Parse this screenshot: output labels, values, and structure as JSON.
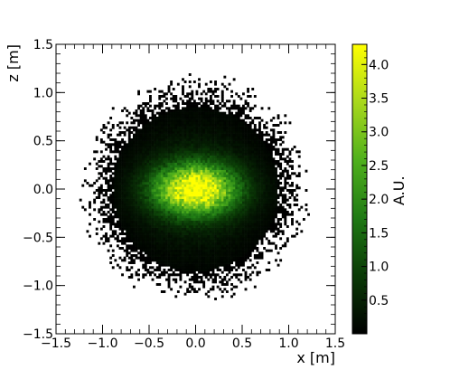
{
  "chart_data": {
    "type": "heatmap",
    "title": "",
    "xlabel": "x [m]",
    "ylabel": "z [m]",
    "colorbar_label": "A.U.",
    "xlim": [
      -1.5,
      1.5
    ],
    "ylim": [
      -1.5,
      1.5
    ],
    "x_ticks": [
      "−1.5",
      "−1.0",
      "−0.5",
      "0.0",
      "0.5",
      "1.0",
      "1.5"
    ],
    "y_ticks": [
      "−1.5",
      "−1.0",
      "−0.5",
      "0.0",
      "0.5",
      "1.0",
      "1.5"
    ],
    "colorbar_range": [
      0,
      4.3
    ],
    "colorbar_ticks": [
      "0.5",
      "1.0",
      "1.5",
      "2.0",
      "2.5",
      "3.0",
      "3.5",
      "4.0"
    ],
    "colormap": [
      "#000000",
      "#0a3a06",
      "#1f7a14",
      "#4fb01c",
      "#a8d81c",
      "#ffff00"
    ],
    "distribution": {
      "center": [
        0.0,
        0.0
      ],
      "dense_radius": 0.85,
      "sparse_radius": 1.25,
      "peak_value": 4.2,
      "peak_width": 0.25
    }
  }
}
